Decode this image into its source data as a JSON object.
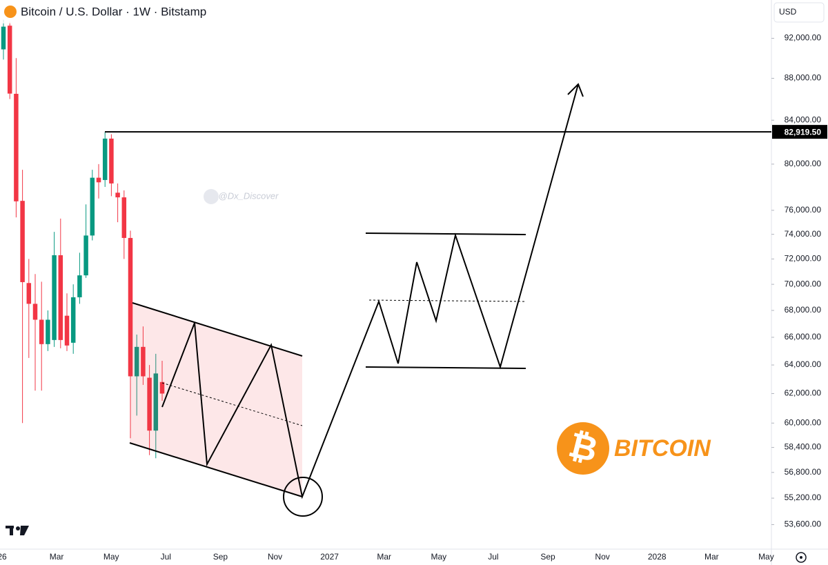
{
  "header": {
    "title": "Bitcoin / U.S. Dollar · 1W · Bitstamp",
    "currency": "USD"
  },
  "watermark": "@Dx_Discover",
  "logo_text": "BITCOIN",
  "chart_data": {
    "type": "candlestick",
    "log_scale": true,
    "ylim": [
      52000,
      96000
    ],
    "yticks": [
      {
        "value": 92000,
        "label": "92,000.00"
      },
      {
        "value": 88000,
        "label": "88,000.00"
      },
      {
        "value": 84000,
        "label": "84,000.00"
      },
      {
        "value": 80000,
        "label": "80,000.00"
      },
      {
        "value": 76000,
        "label": "76,000.00"
      },
      {
        "value": 74000,
        "label": "74,000.00"
      },
      {
        "value": 72000,
        "label": "72,000.00"
      },
      {
        "value": 70000,
        "label": "70,000.00"
      },
      {
        "value": 68000,
        "label": "68,000.00"
      },
      {
        "value": 66000,
        "label": "66,000.00"
      },
      {
        "value": 64000,
        "label": "64,000.00"
      },
      {
        "value": 62000,
        "label": "62,000.00"
      },
      {
        "value": 60000,
        "label": "60,000.00"
      },
      {
        "value": 58400,
        "label": "58,400.00"
      },
      {
        "value": 56800,
        "label": "56,800.00"
      },
      {
        "value": 55200,
        "label": "55,200.00"
      },
      {
        "value": 53600,
        "label": "53,600.00"
      }
    ],
    "x_labels": [
      "26",
      "Mar",
      "May",
      "Jul",
      "Sep",
      "Nov",
      "2027",
      "Mar",
      "May",
      "Jul",
      "Sep",
      "Nov",
      "2028",
      "Mar",
      "May"
    ],
    "up_color": "#089981",
    "down_color": "#f23645",
    "open": [
      90877,
      93300,
      86500,
      76800,
      70100,
      68500,
      67300,
      65500,
      65800,
      72300,
      67600,
      65600,
      69000,
      70700,
      73900,
      78800,
      78600,
      82300,
      77500,
      77100,
      73700,
      63200,
      65300,
      63100,
      59500,
      62800
    ],
    "high": [
      93920,
      93700,
      90000,
      79500,
      72000,
      70800,
      70200,
      68000,
      74200,
      75300,
      69300,
      70000,
      72500,
      76500,
      79500,
      80000,
      82900,
      82700,
      78300,
      77700,
      74300,
      66200,
      66800,
      64000,
      64800,
      64300
    ],
    "low": [
      89850,
      86000,
      75400,
      60000,
      64500,
      62200,
      62200,
      65000,
      65300,
      65200,
      65000,
      64800,
      68500,
      70500,
      73500,
      77000,
      78000,
      77200,
      75000,
      72000,
      59000,
      60500,
      62600,
      57900,
      57700,
      61500
    ],
    "close": [
      93200,
      86520,
      76760,
      70170,
      68500,
      67300,
      65500,
      67300,
      72300,
      65800,
      65400,
      69000,
      70700,
      73900,
      78800,
      78400,
      82300,
      78300,
      77100,
      73700,
      63200,
      65300,
      63200,
      59500,
      63400,
      62000
    ],
    "price_line": {
      "value": 82919.5,
      "label": "82,919.50"
    }
  }
}
